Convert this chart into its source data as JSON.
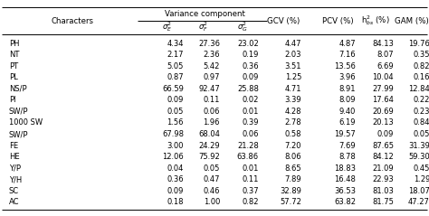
{
  "variance_group_label": "Variance component",
  "sigma_labels": [
    "$\\sigma^2_E$",
    "$\\sigma^2_F$",
    "$\\sigma^2_G$"
  ],
  "other_headers": [
    "GCV (%)",
    "PCV (%)",
    "h$^2_{bs}$ (%)",
    "GAM (%)"
  ],
  "rows": [
    [
      "PH",
      "4.34",
      "27.36",
      "23.02",
      "4.47",
      "4.87",
      "84.13",
      "19.76"
    ],
    [
      "NT",
      "2.17",
      "2.36",
      "0.19",
      "2.03",
      "7.16",
      "8.07",
      "0.35"
    ],
    [
      "PT",
      "5.05",
      "5.42",
      "0.36",
      "3.51",
      "13.56",
      "6.69",
      "0.82"
    ],
    [
      "PL",
      "0.87",
      "0.97",
      "0.09",
      "1.25",
      "3.96",
      "10.04",
      "0.16"
    ],
    [
      "NS/P",
      "66.59",
      "92.47",
      "25.88",
      "4.71",
      "8.91",
      "27.99",
      "12.84"
    ],
    [
      "Pl",
      "0.09",
      "0.11",
      "0.02",
      "3.39",
      "8.09",
      "17.64",
      "0.22"
    ],
    [
      "SW/P",
      "0.05",
      "0.06",
      "0.01",
      "4.28",
      "9.40",
      "20.69",
      "0.23"
    ],
    [
      "1000 SW",
      "1.56",
      "1.96",
      "0.39",
      "2.78",
      "6.19",
      "20.13",
      "0.84"
    ],
    [
      "SW/P",
      "67.98",
      "68.04",
      "0.06",
      "0.58",
      "19.57",
      "0.09",
      "0.05"
    ],
    [
      "FE",
      "3.00",
      "24.29",
      "21.28",
      "7.20",
      "7.69",
      "87.65",
      "31.39"
    ],
    [
      "HE",
      "12.06",
      "75.92",
      "63.86",
      "8.06",
      "8.78",
      "84.12",
      "59.30"
    ],
    [
      "Y/P",
      "0.04",
      "0.05",
      "0.01",
      "8.65",
      "18.83",
      "21.09",
      "0.45"
    ],
    [
      "Y/H",
      "0.36",
      "0.47",
      "0.11",
      "7.89",
      "16.48",
      "22.93",
      "1.29"
    ],
    [
      "SC",
      "0.09",
      "0.46",
      "0.37",
      "32.89",
      "36.53",
      "81.03",
      "18.07"
    ],
    [
      "AC",
      "0.18",
      "1.00",
      "0.82",
      "57.72",
      "63.82",
      "81.75",
      "47.27"
    ]
  ],
  "background_color": "#ffffff",
  "text_color": "#000000",
  "fontsize": 6.0,
  "header_fontsize": 6.2
}
